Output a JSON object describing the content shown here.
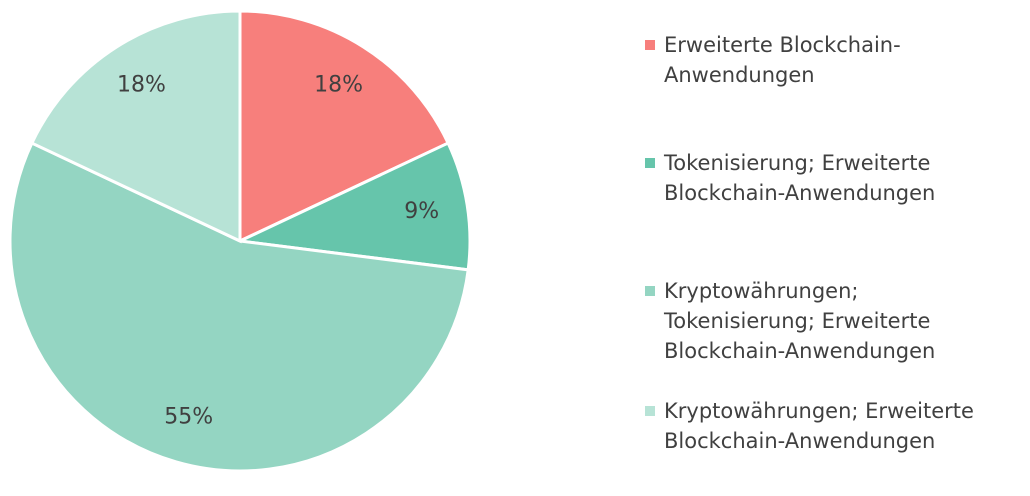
{
  "chart_data": {
    "type": "pie",
    "categories": [
      "Erweiterte Blockchain-Anwendungen",
      "Tokenisierung; Erweiterte Blockchain-Anwendungen",
      "Kryptowährungen; Tokenisierung; Erweiterte Blockchain-Anwendungen",
      "Kryptowährungen; Erweiterte Blockchain-Anwendungen"
    ],
    "values": [
      18,
      9,
      55,
      18
    ],
    "value_labels": [
      "18%",
      "9%",
      "55%",
      "18%"
    ],
    "colors": [
      "#f77f7c",
      "#66c5ab",
      "#94d5c2",
      "#b7e3d6"
    ],
    "legend": "right"
  }
}
